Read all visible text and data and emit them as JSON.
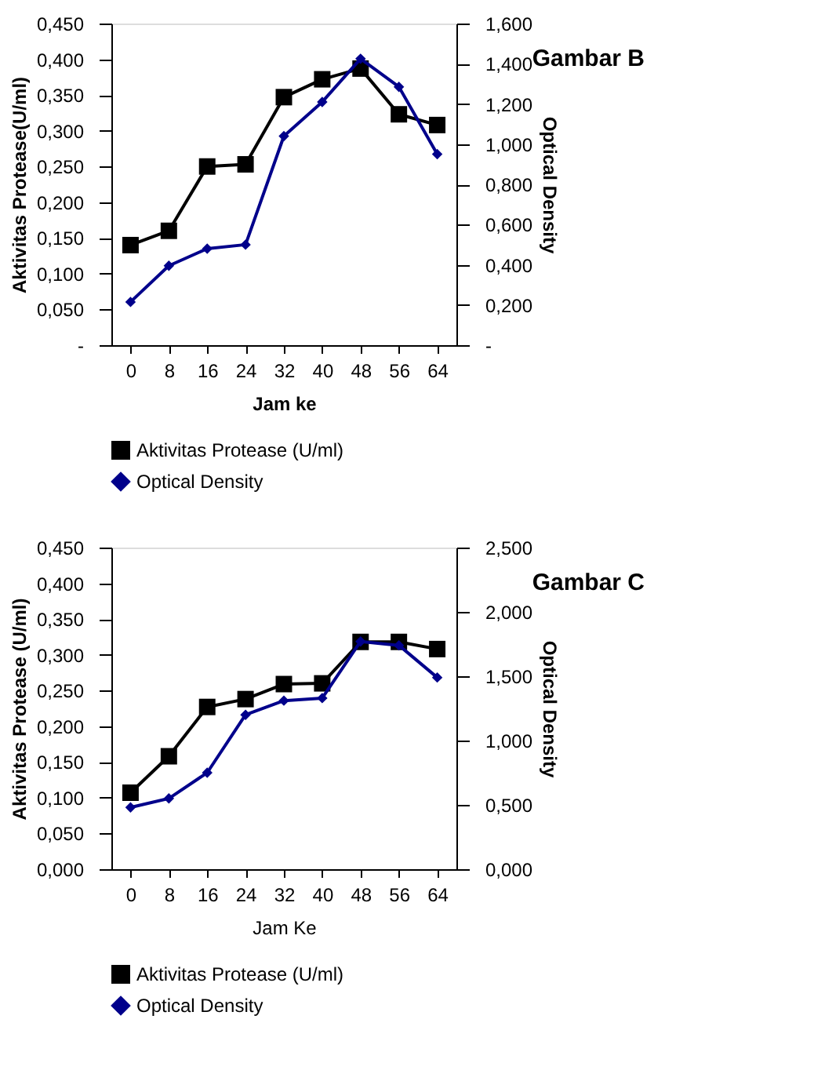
{
  "chart_data": [
    {
      "type": "line",
      "title": "Gambar B",
      "xlabel": "Jam ke",
      "ylabel": "Aktivitas Protease(U/ml)",
      "y2label": "Optical Density",
      "categories": [
        "0",
        "8",
        "16",
        "24",
        "32",
        "40",
        "48",
        "56",
        "64"
      ],
      "series": [
        {
          "name": "Aktivitas Protease (U/ml)",
          "color": "#000000",
          "marker": "square",
          "values": [
            0.14,
            0.16,
            0.25,
            0.253,
            0.347,
            0.372,
            0.387,
            0.323,
            0.308
          ]
        },
        {
          "name": "Optical Density",
          "color": "#00008b",
          "marker": "diamond",
          "axis": "y2",
          "values": [
            0.215,
            0.395,
            0.48,
            0.5,
            1.04,
            1.21,
            1.425,
            1.285,
            0.95
          ]
        }
      ],
      "ylim": [
        0,
        0.45
      ],
      "yticks": [
        {
          "value": 0,
          "label": "-"
        },
        {
          "value": 0.05,
          "label": "0,050"
        },
        {
          "value": 0.1,
          "label": "0,100"
        },
        {
          "value": 0.15,
          "label": "0,150"
        },
        {
          "value": 0.2,
          "label": "0,200"
        },
        {
          "value": 0.25,
          "label": "0,250"
        },
        {
          "value": 0.3,
          "label": "0,300"
        },
        {
          "value": 0.35,
          "label": "0,350"
        },
        {
          "value": 0.4,
          "label": "0,400"
        },
        {
          "value": 0.45,
          "label": "0,450"
        }
      ],
      "y2lim": [
        0,
        1.6
      ],
      "y2ticks": [
        {
          "value": 0,
          "label": "-"
        },
        {
          "value": 0.2,
          "label": "0,200"
        },
        {
          "value": 0.4,
          "label": "0,400"
        },
        {
          "value": 0.6,
          "label": "0,600"
        },
        {
          "value": 0.8,
          "label": "0,800"
        },
        {
          "value": 1.0,
          "label": "1,000"
        },
        {
          "value": 1.2,
          "label": "1,200"
        },
        {
          "value": 1.4,
          "label": "1,400"
        },
        {
          "value": 1.6,
          "label": "1,600"
        }
      ],
      "grid": false,
      "legend": "bottom",
      "line_style": "solid"
    },
    {
      "type": "line",
      "title": "Gambar C",
      "xlabel": "Jam Ke",
      "ylabel": "Aktivitas Protease (U/ml)",
      "y2label": "Optical Density",
      "categories": [
        "0",
        "8",
        "16",
        "24",
        "32",
        "40",
        "48",
        "56",
        "64"
      ],
      "series": [
        {
          "name": "Aktivitas Protease (U/ml)",
          "color": "#000000",
          "marker": "square",
          "values": [
            0.107,
            0.158,
            0.227,
            0.238,
            0.259,
            0.26,
            0.318,
            0.318,
            0.308
          ]
        },
        {
          "name": "Optical Density",
          "color": "#00008b",
          "marker": "diamond",
          "axis": "y2",
          "values": [
            0.48,
            0.55,
            0.75,
            1.2,
            1.31,
            1.33,
            1.77,
            1.74,
            1.49
          ]
        }
      ],
      "ylim": [
        0,
        0.45
      ],
      "yticks": [
        {
          "value": 0,
          "label": "0,000"
        },
        {
          "value": 0.05,
          "label": "0,050"
        },
        {
          "value": 0.1,
          "label": "0,100"
        },
        {
          "value": 0.15,
          "label": "0,150"
        },
        {
          "value": 0.2,
          "label": "0,200"
        },
        {
          "value": 0.25,
          "label": "0,250"
        },
        {
          "value": 0.3,
          "label": "0,300"
        },
        {
          "value": 0.35,
          "label": "0,350"
        },
        {
          "value": 0.4,
          "label": "0,400"
        },
        {
          "value": 0.45,
          "label": "0,450"
        }
      ],
      "y2lim": [
        0,
        2.5
      ],
      "y2ticks": [
        {
          "value": 0,
          "label": "0,000"
        },
        {
          "value": 0.5,
          "label": "0,500"
        },
        {
          "value": 1.0,
          "label": "1,000"
        },
        {
          "value": 1.5,
          "label": "1,500"
        },
        {
          "value": 2.0,
          "label": "2,000"
        },
        {
          "value": 2.5,
          "label": "2,500"
        }
      ],
      "grid": false,
      "legend": "bottom",
      "line_style": "solid"
    }
  ]
}
